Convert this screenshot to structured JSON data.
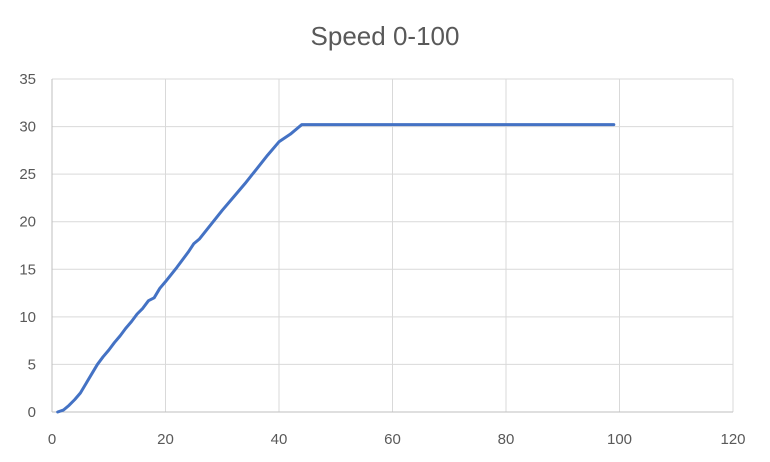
{
  "chart_data": {
    "type": "scatter",
    "title": "Speed 0-100",
    "xlabel": "",
    "ylabel": "",
    "xlim": [
      0,
      120
    ],
    "ylim": [
      0,
      35
    ],
    "x_ticks": [
      "0",
      "20",
      "40",
      "60",
      "80",
      "100",
      "120"
    ],
    "y_ticks": [
      "0",
      "5",
      "10",
      "15",
      "20",
      "25",
      "30",
      "35"
    ],
    "grid": true,
    "legend": "none",
    "series": [
      {
        "color": "#4472c4",
        "x": [
          1,
          2,
          3,
          4,
          5,
          6,
          7,
          8,
          9,
          10,
          11,
          12,
          13,
          14,
          15,
          16,
          17,
          18,
          19,
          20,
          22,
          24,
          25,
          26,
          28,
          30,
          32,
          34,
          36,
          38,
          40,
          42,
          44,
          50,
          60,
          70,
          80,
          90,
          99
        ],
        "y": [
          0,
          0.2,
          0.7,
          1.3,
          2.0,
          3.0,
          4.0,
          5.0,
          5.8,
          6.5,
          7.3,
          8.0,
          8.8,
          9.5,
          10.3,
          10.9,
          11.7,
          12.0,
          13.0,
          13.7,
          15.2,
          16.8,
          17.7,
          18.2,
          19.7,
          21.2,
          22.6,
          24.0,
          25.5,
          27.0,
          28.4,
          29.2,
          30.2,
          30.2,
          30.2,
          30.2,
          30.2,
          30.2,
          30.2
        ]
      }
    ]
  }
}
